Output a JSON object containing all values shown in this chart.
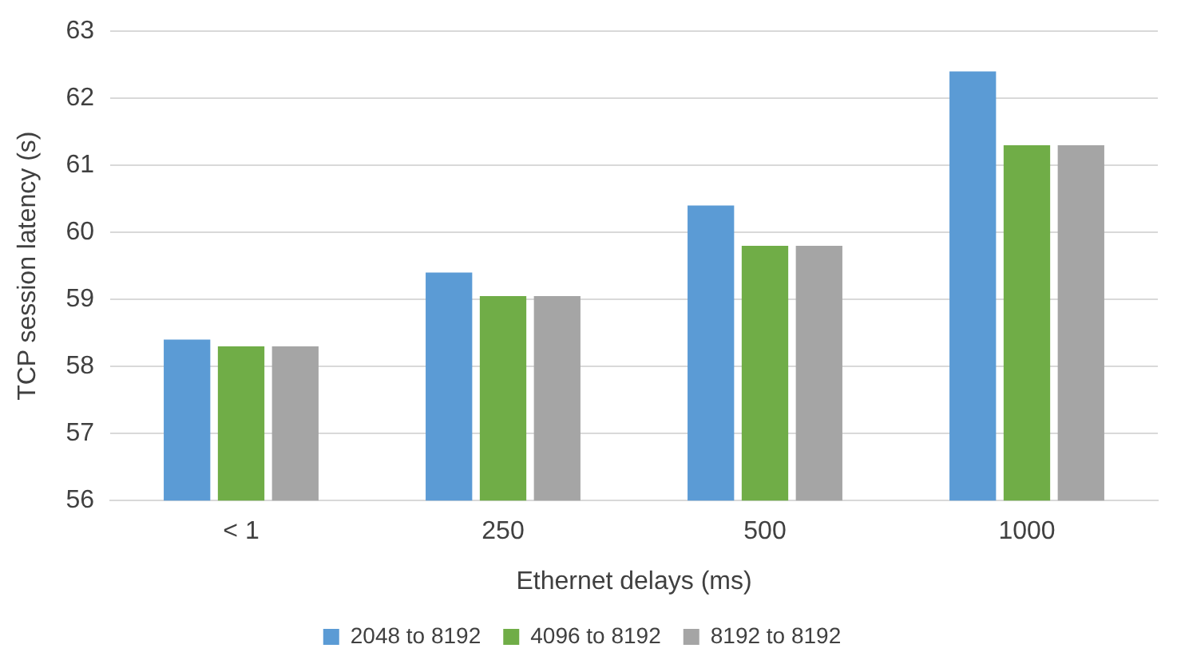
{
  "chart_data": {
    "type": "bar",
    "xlabel": "Ethernet delays (ms)",
    "ylabel": "TCP session latency (s)",
    "categories": [
      "< 1",
      "250",
      "500",
      "1000"
    ],
    "series": [
      {
        "name": "2048 to 8192",
        "color": "#5b9bd5",
        "values": [
          58.4,
          59.4,
          60.4,
          62.4
        ]
      },
      {
        "name": "4096 to 8192",
        "color": "#70ad47",
        "values": [
          58.3,
          59.05,
          59.8,
          61.3
        ]
      },
      {
        "name": "8192 to 8192",
        "color": "#a5a5a5",
        "values": [
          58.3,
          59.05,
          59.8,
          61.3
        ]
      }
    ],
    "ylim": [
      56,
      63
    ],
    "yticks": [
      56,
      57,
      58,
      59,
      60,
      61,
      62,
      63
    ],
    "grid": "y",
    "legend": "bottom"
  }
}
